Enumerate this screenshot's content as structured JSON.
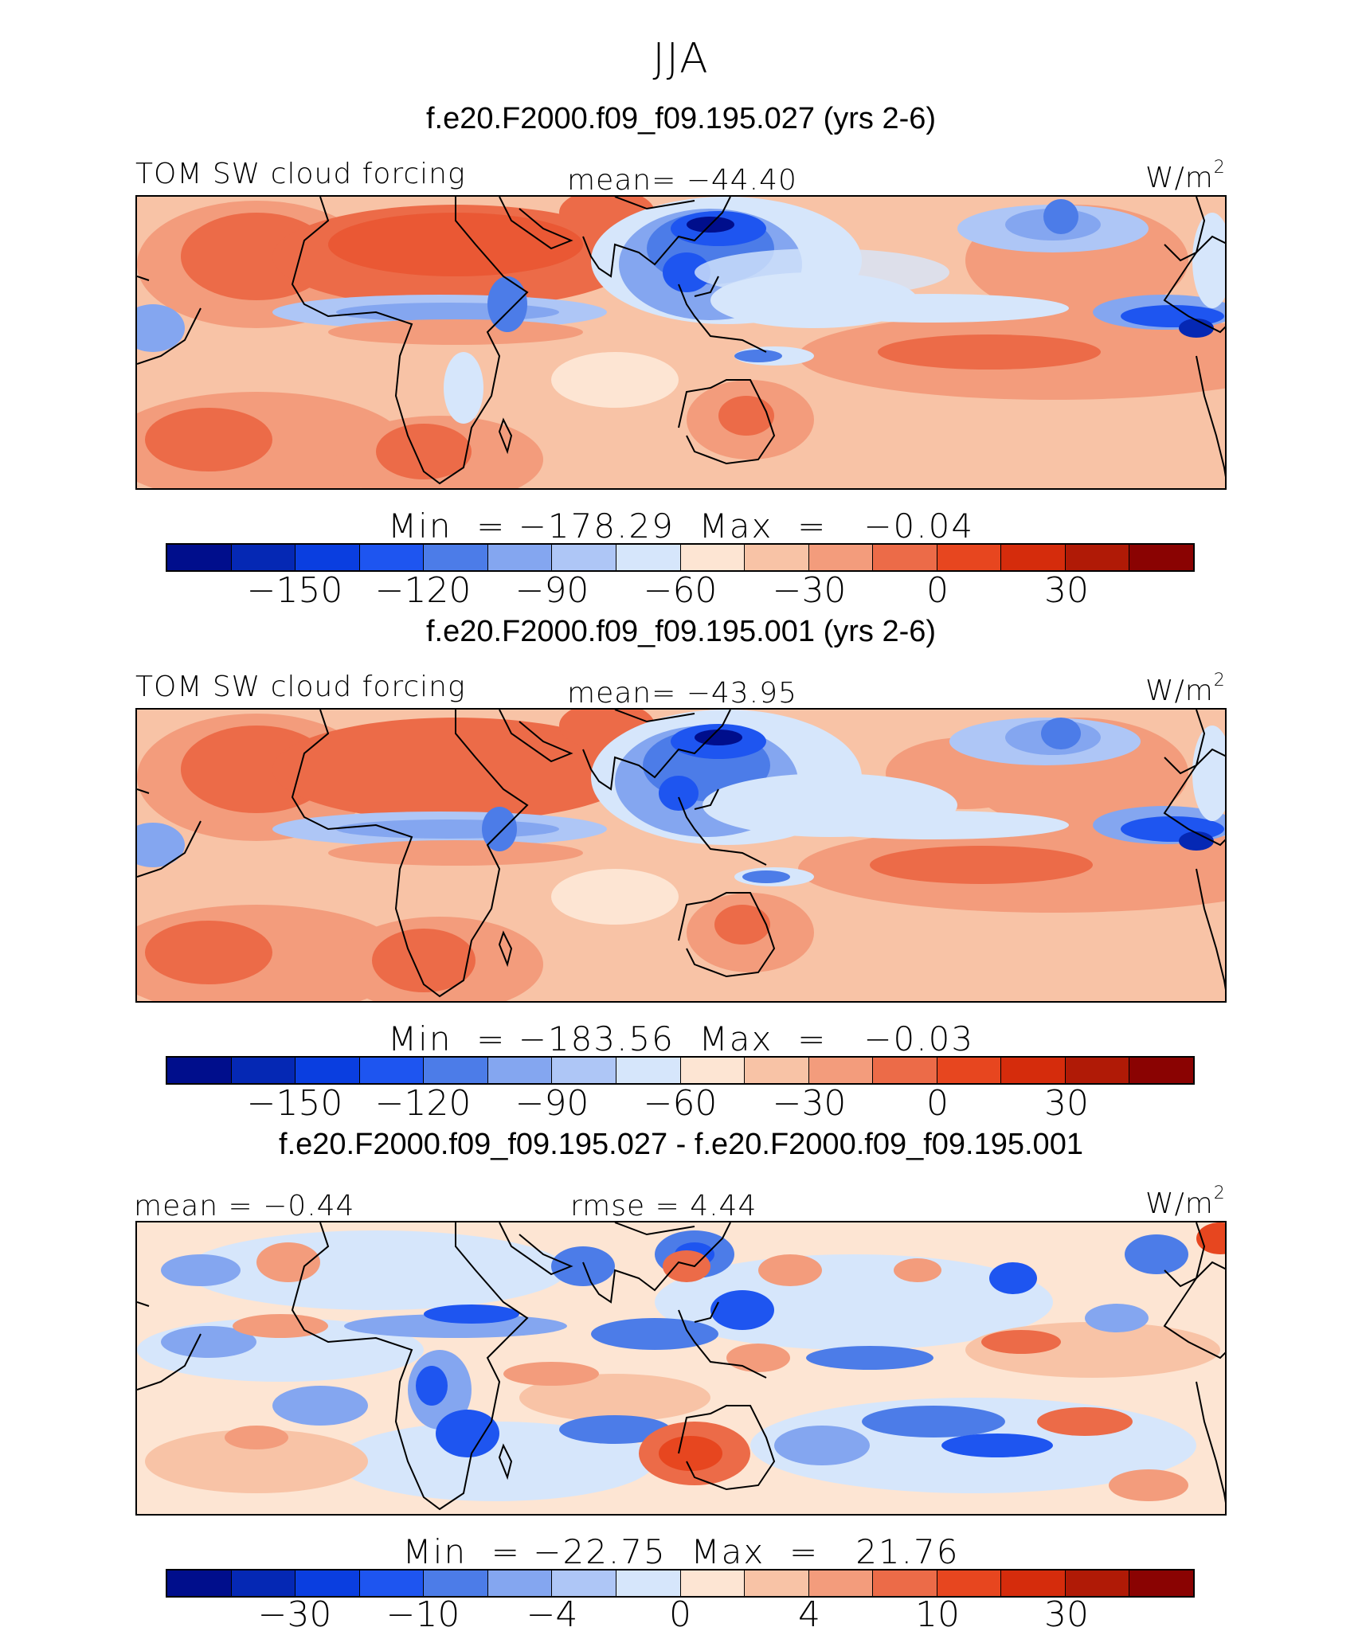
{
  "season": "JJA",
  "colors": {
    "negative_scale": [
      "#000e8c",
      "#0528b4",
      "#0a3ee0",
      "#1e55f0",
      "#4c7ce8",
      "#84a6f0",
      "#aec6f6",
      "#d6e6fb"
    ],
    "positive_scale": [
      "#fde5d3",
      "#f8c3a6",
      "#f39c7c",
      "#ec6b48",
      "#e7461f",
      "#d52c0c",
      "#b01a06",
      "#8a0302"
    ]
  },
  "panels": [
    {
      "case_title": "f.e20.F2000.f09_f09.195.027 (yrs 2-6)",
      "variable_label": "TOM SW cloud forcing",
      "stat_label": "mean= −44.40",
      "units": "W/m",
      "units_sup": "2",
      "minmax": "Min  = −178.29  Max  =   −0.04",
      "colorbar_ticks": [
        "−150",
        "−120",
        "−90",
        "−60",
        "−30",
        "0",
        "30"
      ]
    },
    {
      "case_title": "f.e20.F2000.f09_f09.195.001 (yrs 2-6)",
      "variable_label": "TOM SW cloud forcing",
      "stat_label": "mean= −43.95",
      "units": "W/m",
      "units_sup": "2",
      "minmax": "Min  = −183.56  Max  =   −0.03",
      "colorbar_ticks": [
        "−150",
        "−120",
        "−90",
        "−60",
        "−30",
        "0",
        "30"
      ]
    },
    {
      "case_title": "f.e20.F2000.f09_f09.195.027 - f.e20.F2000.f09_f09.195.001",
      "variable_label": "mean  =   −0.44",
      "stat_label": "rmse  =    4.44",
      "units": "W/m",
      "units_sup": "2",
      "minmax": "Min  = −22.75  Max  =   21.76",
      "colorbar_ticks": [
        "−30",
        "−10",
        "−4",
        "0",
        "4",
        "10",
        "30"
      ]
    }
  ]
}
